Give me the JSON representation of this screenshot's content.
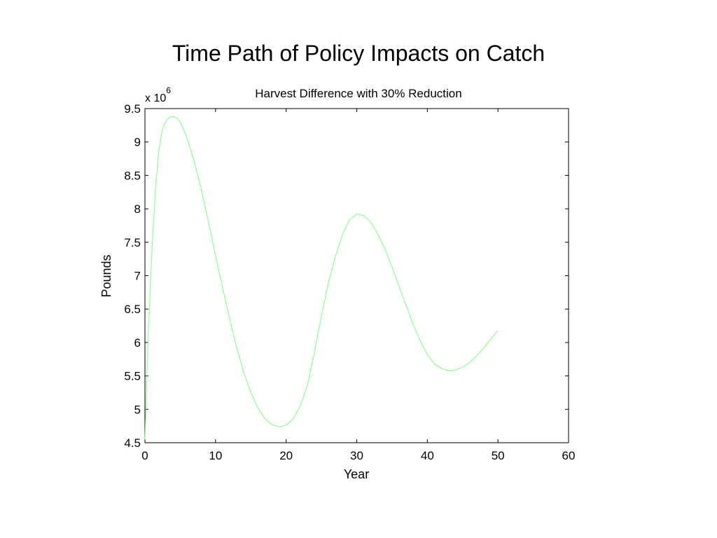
{
  "slide": {
    "title": "Time Path of Policy Impacts on Catch"
  },
  "chart_data": {
    "type": "line",
    "title": "Harvest Difference with 30% Reduction",
    "xlabel": "Year",
    "ylabel": "Pounds",
    "y_multiplier_base": "x 10",
    "y_multiplier_exp": "6",
    "xlim": [
      0,
      60
    ],
    "ylim": [
      4.5,
      9.5
    ],
    "xticks": [
      "0",
      "10",
      "20",
      "30",
      "40",
      "50",
      "60"
    ],
    "yticks": [
      "4.5",
      "5",
      "5.5",
      "6",
      "6.5",
      "7",
      "7.5",
      "8",
      "8.5",
      "9",
      "9.5"
    ],
    "grid": false,
    "line_color": "#7fff7f",
    "series": [
      {
        "x": [
          0,
          0.5,
          1,
          1.5,
          2,
          2.5,
          3,
          3.5,
          4,
          4.5,
          5,
          6,
          7,
          8,
          9,
          10,
          11,
          12,
          13,
          14,
          15,
          16,
          17,
          18,
          19,
          20,
          21,
          22,
          23,
          24,
          25,
          26,
          27,
          28,
          29,
          30,
          31,
          32,
          33,
          34,
          35,
          36,
          37,
          38,
          39,
          40,
          41,
          42,
          43,
          44,
          45,
          46,
          47,
          48,
          49,
          50
        ],
        "y": [
          4.55,
          6.2,
          7.4,
          8.3,
          8.9,
          9.2,
          9.32,
          9.37,
          9.38,
          9.36,
          9.3,
          9.05,
          8.7,
          8.28,
          7.8,
          7.3,
          6.82,
          6.35,
          5.92,
          5.55,
          5.25,
          5.02,
          4.86,
          4.77,
          4.74,
          4.76,
          4.86,
          5.05,
          5.35,
          5.85,
          6.4,
          6.9,
          7.3,
          7.62,
          7.84,
          7.92,
          7.9,
          7.8,
          7.62,
          7.4,
          7.13,
          6.84,
          6.55,
          6.27,
          6.02,
          5.82,
          5.68,
          5.61,
          5.58,
          5.59,
          5.63,
          5.7,
          5.8,
          5.92,
          6.05,
          6.18
        ]
      }
    ]
  }
}
